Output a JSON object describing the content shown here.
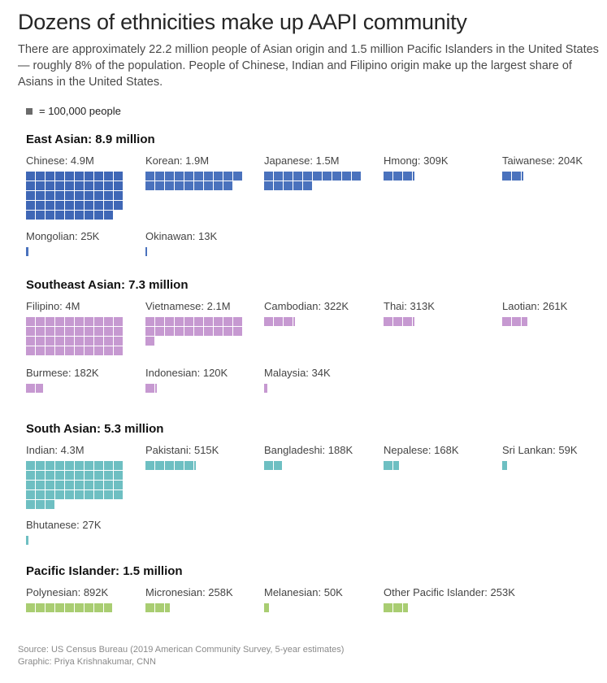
{
  "title": "Dozens of ethnicities make up AAPI community",
  "subtitle": "There are approximately 22.2 million people of Asian origin and 1.5 million Pacific Islanders in the United States — roughly 8% of the population. People of Chinese, Indian and Filipino origin make up the largest share of Asians in the United States.",
  "legend": {
    "label": "= 100,000 people",
    "color": "#6b6b6b"
  },
  "source": {
    "line1": "Source: US Census Bureau (2019 American Community Survey, 5-year estimates)",
    "line2": "Graphic: Priya Krishnakumar, CNN"
  },
  "chart_data": {
    "type": "waffle",
    "unit": 100000,
    "unit_label": "= 100,000 people",
    "groups": [
      {
        "name": "East Asian: 8.9 million",
        "color": "#4a72bd",
        "items": [
          {
            "label": "Chinese: 4.9M",
            "value": 4900000,
            "color": "#3f67b6"
          },
          {
            "label": "Korean: 1.9M",
            "value": 1900000
          },
          {
            "label": "Japanese: 1.5M",
            "value": 1500000
          },
          {
            "label": "Hmong: 309K",
            "value": 309000
          },
          {
            "label": "Taiwanese: 204K",
            "value": 204000
          },
          {
            "label": "Mongolian: 25K",
            "value": 25000
          },
          {
            "label": "Okinawan: 13K",
            "value": 13000
          }
        ]
      },
      {
        "name": "Southeast Asian: 7.3 million",
        "color": "#c699d1",
        "items": [
          {
            "label": "Filipino: 4M",
            "value": 4000000
          },
          {
            "label": "Vietnamese: 2.1M",
            "value": 2100000
          },
          {
            "label": "Cambodian: 322K",
            "value": 322000
          },
          {
            "label": "Thai: 313K",
            "value": 313000
          },
          {
            "label": "Laotian: 261K",
            "value": 261000
          },
          {
            "label": "Burmese: 182K",
            "value": 182000
          },
          {
            "label": "Indonesian: 120K",
            "value": 120000
          },
          {
            "label": "Malaysia: 34K",
            "value": 34000
          }
        ]
      },
      {
        "name": "South Asian: 5.3 million",
        "color": "#6ebfc2",
        "items": [
          {
            "label": "Indian: 4.3M",
            "value": 4300000
          },
          {
            "label": "Pakistani: 515K",
            "value": 515000
          },
          {
            "label": "Bangladeshi: 188K",
            "value": 188000
          },
          {
            "label": "Nepalese: 168K",
            "value": 168000
          },
          {
            "label": "Sri Lankan: 59K",
            "value": 59000
          },
          {
            "label": "Bhutanese: 27K",
            "value": 27000
          }
        ]
      },
      {
        "name": "Pacific Islander: 1.5 million",
        "color": "#a9cd72",
        "items": [
          {
            "label": "Polynesian: 892K",
            "value": 892000
          },
          {
            "label": "Micronesian: 258K",
            "value": 258000
          },
          {
            "label": "Melanesian: 50K",
            "value": 50000
          },
          {
            "label": "Other Pacific Islander: 253K",
            "value": 253000
          }
        ]
      }
    ]
  }
}
